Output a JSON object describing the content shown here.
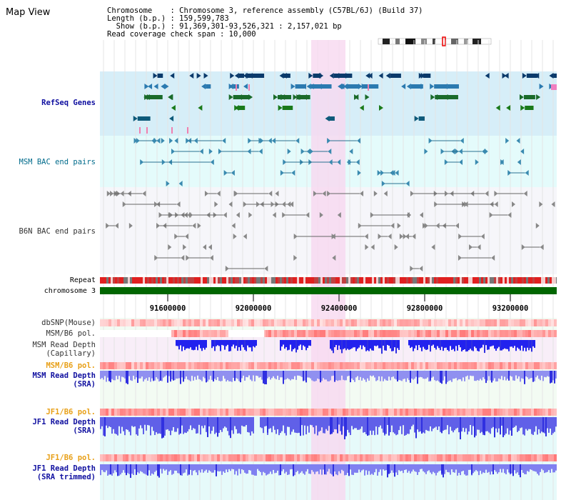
{
  "header": {
    "title": "Map View",
    "info_lines": [
      "Chromosome    : Chromosome 3, reference assembly (C57BL/6J) (Build 37)",
      "Length (b.p.) : 159,599,783",
      "  Show (b.p.) : 91,369,301-93,526,321 : 2,157,021 bp",
      "Read coverage check span : 10,000"
    ]
  },
  "tracks": {
    "refseq": "RefSeq Genes",
    "msm_bac": "MSM BAC end pairs",
    "b6n_bac": "B6N BAC end pairs",
    "repeat": "Repeat",
    "chromosome": "chromosome 3",
    "dbsnp": "dbSNP(Mouse)",
    "msm_b6_pol": "MSM/B6 pol.",
    "msm_depth_cap_1": "MSM Read Depth",
    "msm_depth_cap_2": "(Capillary)",
    "msm_b6_pol2": "MSM/B6 pol.",
    "msm_depth_sra_1": "MSM Read Depth",
    "msm_depth_sra_2": "(SRA)",
    "jf1_b6_pol": "JF1/B6 pol.",
    "jf1_depth_sra_1": "JF1 Read Depth",
    "jf1_depth_sra_2": "(SRA)",
    "jf1_b6_pol2": "JF1/B6 pol.",
    "jf1_depth_trim_1": "JF1 Read Depth",
    "jf1_depth_trim_2": "(SRA trimmed)"
  },
  "axis": {
    "ticks": [
      "91600000",
      "92000000",
      "92400000",
      "92800000",
      "93200000"
    ]
  },
  "colors": {
    "refseq_bg": "#d6eef8",
    "msm_bg": "#e4fbfb",
    "b6n_bg": "#f6f6fa",
    "highlight": "#f8d8f0",
    "chromosome": "#006600",
    "depth_blue": "#3333ee"
  }
}
